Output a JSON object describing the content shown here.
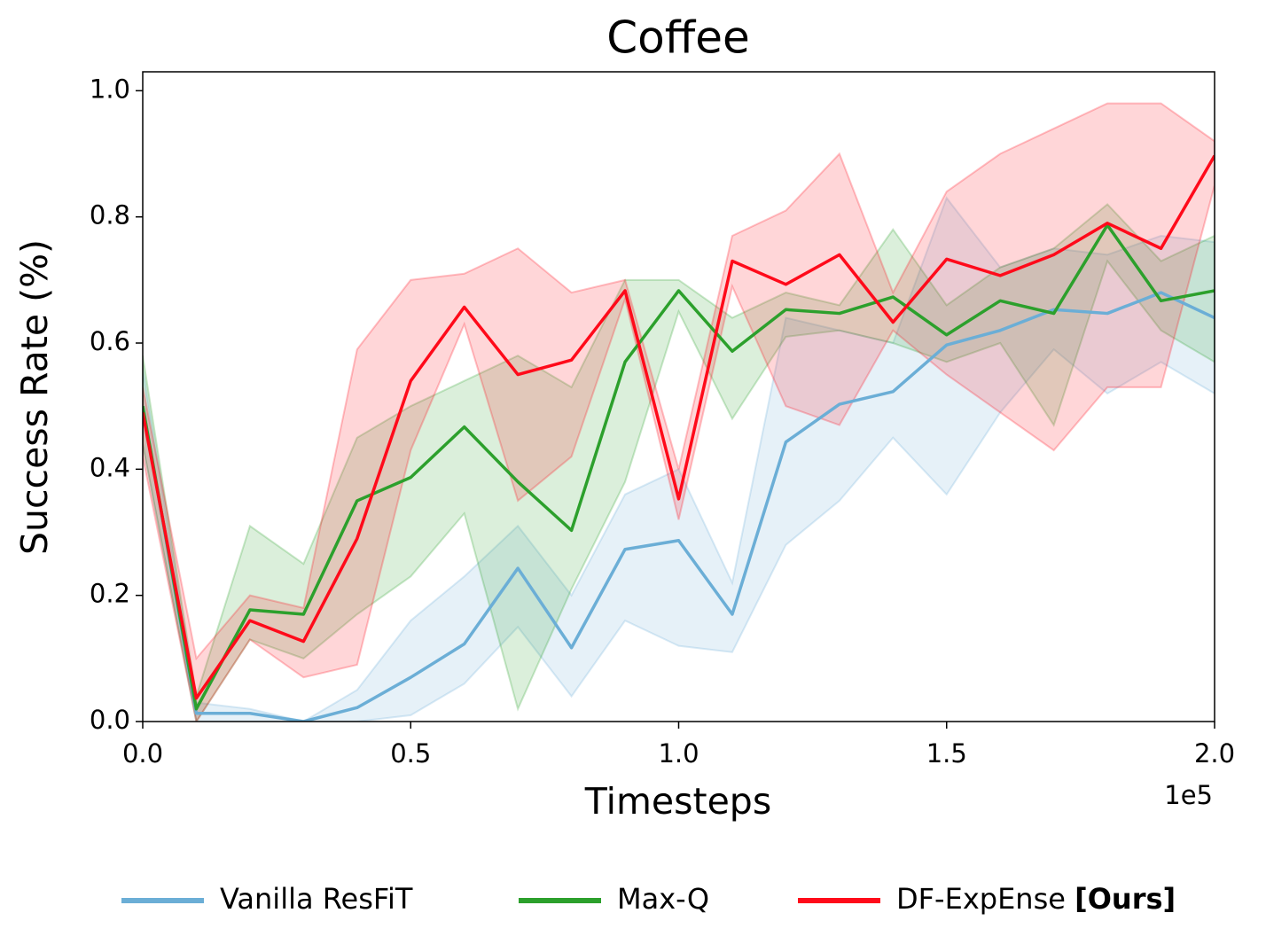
{
  "chart_data": {
    "type": "line",
    "title": "Coffee",
    "x_label": "Timesteps",
    "y_label": "Success Rate (%)",
    "x_offset_label": "1e5",
    "x": [
      0,
      0.1,
      0.2,
      0.3,
      0.4,
      0.5,
      0.6,
      0.7,
      0.8,
      0.9,
      1.0,
      1.1,
      1.2,
      1.3,
      1.4,
      1.5,
      1.6,
      1.7,
      1.8,
      1.9,
      2.0
    ],
    "xlim": [
      0,
      2.0
    ],
    "ylim": [
      0,
      1.03
    ],
    "xticks": [
      {
        "value": 0,
        "label": "0.0"
      },
      {
        "value": 0.5,
        "label": "0.5"
      },
      {
        "value": 1.0,
        "label": "1.0"
      },
      {
        "value": 1.5,
        "label": "1.5"
      },
      {
        "value": 2.0,
        "label": "2.0"
      }
    ],
    "yticks": [
      {
        "value": 0,
        "label": "0.0"
      },
      {
        "value": 0.2,
        "label": "0.2"
      },
      {
        "value": 0.4,
        "label": "0.4"
      },
      {
        "value": 0.6,
        "label": "0.6"
      },
      {
        "value": 0.8,
        "label": "0.8"
      },
      {
        "value": 1.0,
        "label": "1.0"
      }
    ],
    "legend": "bottom",
    "band_opacity": 0.17,
    "series": [
      {
        "name": "Vanilla ResFiT",
        "color": "#6baed6",
        "values": [
          0.5,
          0.013,
          0.013,
          0.0,
          0.022,
          0.07,
          0.123,
          0.243,
          0.117,
          0.273,
          0.287,
          0.17,
          0.443,
          0.503,
          0.523,
          0.597,
          0.62,
          0.653,
          0.647,
          0.68,
          0.64
        ],
        "lower": [
          0.44,
          0,
          0,
          0,
          0,
          0.01,
          0.06,
          0.15,
          0.04,
          0.16,
          0.12,
          0.11,
          0.28,
          0.35,
          0.45,
          0.36,
          0.49,
          0.59,
          0.52,
          0.57,
          0.52
        ],
        "upper": [
          0.56,
          0.03,
          0.02,
          0,
          0.05,
          0.16,
          0.23,
          0.31,
          0.2,
          0.36,
          0.4,
          0.22,
          0.64,
          0.62,
          0.6,
          0.83,
          0.72,
          0.75,
          0.74,
          0.77,
          0.76
        ]
      },
      {
        "name": "Max-Q",
        "color": "#2ca02c",
        "values": [
          0.5,
          0.02,
          0.177,
          0.17,
          0.35,
          0.387,
          0.467,
          0.38,
          0.303,
          0.57,
          0.683,
          0.587,
          0.653,
          0.647,
          0.673,
          0.613,
          0.667,
          0.647,
          0.787,
          0.667,
          0.683
        ],
        "lower": [
          0.44,
          0,
          0.13,
          0.1,
          0.17,
          0.23,
          0.33,
          0.02,
          0.21,
          0.38,
          0.65,
          0.48,
          0.61,
          0.62,
          0.6,
          0.57,
          0.6,
          0.47,
          0.73,
          0.62,
          0.57
        ],
        "upper": [
          0.58,
          0.04,
          0.31,
          0.25,
          0.45,
          0.5,
          0.54,
          0.58,
          0.53,
          0.7,
          0.7,
          0.64,
          0.68,
          0.66,
          0.78,
          0.66,
          0.72,
          0.75,
          0.82,
          0.73,
          0.77
        ]
      },
      {
        "name": "DF-ExpEnse [Ours]",
        "color": "#ff0a1a",
        "values": [
          0.49,
          0.037,
          0.16,
          0.127,
          0.29,
          0.54,
          0.657,
          0.55,
          0.573,
          0.683,
          0.353,
          0.73,
          0.693,
          0.74,
          0.633,
          0.733,
          0.707,
          0.74,
          0.79,
          0.75,
          0.897
        ],
        "lower": [
          0.42,
          0,
          0.13,
          0.07,
          0.09,
          0.43,
          0.63,
          0.35,
          0.42,
          0.67,
          0.32,
          0.69,
          0.5,
          0.47,
          0.62,
          0.55,
          0.49,
          0.43,
          0.53,
          0.53,
          0.85
        ],
        "upper": [
          0.53,
          0.1,
          0.2,
          0.18,
          0.59,
          0.7,
          0.71,
          0.75,
          0.68,
          0.7,
          0.4,
          0.77,
          0.81,
          0.9,
          0.68,
          0.84,
          0.9,
          0.94,
          0.98,
          0.98,
          0.92
        ]
      }
    ]
  }
}
